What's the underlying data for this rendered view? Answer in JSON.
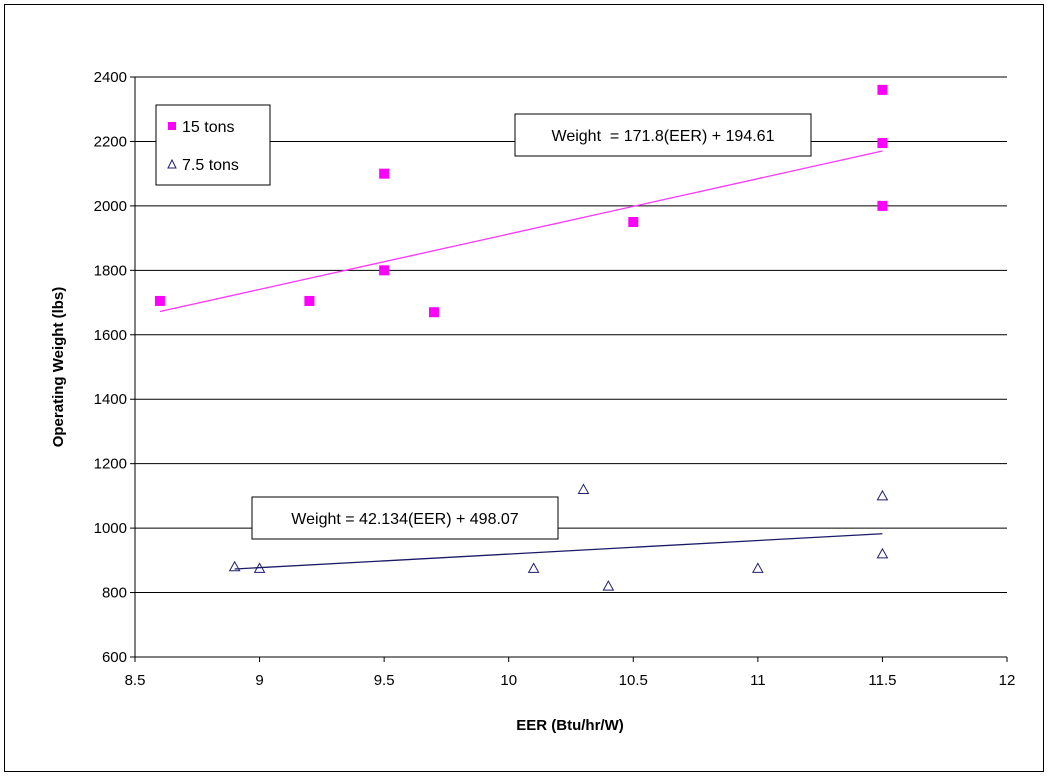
{
  "chart_data": {
    "type": "scatter",
    "title": "",
    "xlabel": "EER (Btu/hr/W)",
    "ylabel": "Operating Weight (lbs)",
    "xlim": [
      8.5,
      12
    ],
    "ylim": [
      600,
      2400
    ],
    "xticks": [
      8.5,
      9,
      9.5,
      10,
      10.5,
      11,
      11.5,
      12
    ],
    "yticks": [
      600,
      800,
      1000,
      1200,
      1400,
      1600,
      1800,
      2000,
      2200,
      2400
    ],
    "xtick_labels": [
      "8.5",
      "9",
      "9.5",
      "10",
      "10.5",
      "11",
      "11.5",
      "12"
    ],
    "ytick_labels": [
      "600",
      "800",
      "1000",
      "1200",
      "1400",
      "1600",
      "1800",
      "2000",
      "2200",
      "2400"
    ],
    "grid": "horizontal",
    "legend_position": "top-left",
    "series": [
      {
        "name": "15 tons",
        "marker": "square",
        "color": "#ff00ff",
        "points": [
          {
            "x": 8.6,
            "y": 1705
          },
          {
            "x": 9.2,
            "y": 1705
          },
          {
            "x": 9.5,
            "y": 2100
          },
          {
            "x": 9.5,
            "y": 1800
          },
          {
            "x": 9.7,
            "y": 1670
          },
          {
            "x": 10.5,
            "y": 1950
          },
          {
            "x": 11.5,
            "y": 2360
          },
          {
            "x": 11.5,
            "y": 2195
          },
          {
            "x": 11.5,
            "y": 2000
          }
        ],
        "trendline": {
          "slope": 171.8,
          "intercept": 194.61,
          "x_range": [
            8.6,
            11.5
          ],
          "color": "#ff33ff"
        },
        "equation": "Weight  = 171.8(EER) + 194.61"
      },
      {
        "name": "7.5 tons",
        "marker": "triangle",
        "color": "#1f1f6e",
        "points": [
          {
            "x": 8.9,
            "y": 880
          },
          {
            "x": 9.0,
            "y": 875
          },
          {
            "x": 10.1,
            "y": 875
          },
          {
            "x": 10.3,
            "y": 1120
          },
          {
            "x": 10.4,
            "y": 820
          },
          {
            "x": 11.0,
            "y": 875
          },
          {
            "x": 11.5,
            "y": 1100
          },
          {
            "x": 11.5,
            "y": 920
          }
        ],
        "trendline": {
          "slope": 42.134,
          "intercept": 498.07,
          "x_range": [
            8.9,
            11.5
          ],
          "color": "#1a1a66"
        },
        "equation": "Weight = 42.134(EER) + 498.07"
      }
    ]
  }
}
